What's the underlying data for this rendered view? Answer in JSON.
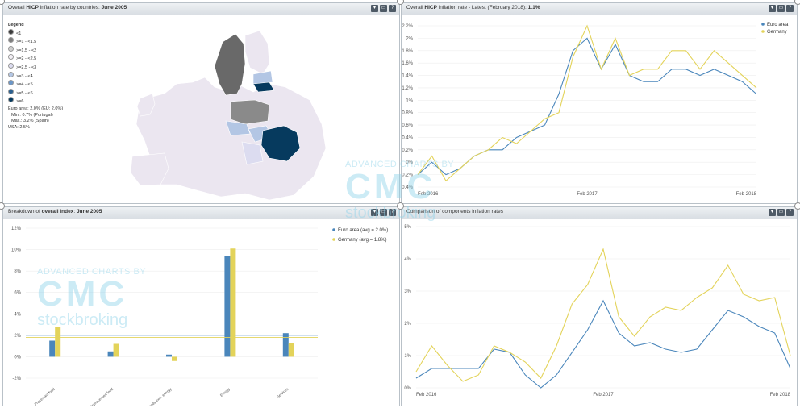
{
  "colors": {
    "euro": "#4a86bb",
    "germany": "#e3d35a",
    "map_bg": "#ebe6f0",
    "grid": "#eeeeee",
    "axis_text": "#555555"
  },
  "watermark": {
    "line1": "ADVANCED CHARTS BY",
    "logo": "CMC",
    "line2": "stockbroking"
  },
  "panels": {
    "map": {
      "title_prefix": "Overall ",
      "title_bold1": "HICP",
      "title_mid": " inflation rate by countries: ",
      "title_bold2": "June 2005"
    },
    "line_top": {
      "title_prefix": "Overall ",
      "title_bold1": "HICP",
      "title_mid": " inflation rate - Latest (February 2018): ",
      "title_bold2": "1.1%"
    },
    "bars": {
      "title_prefix": "Breakdown of ",
      "title_bold1": "overall index",
      "title_mid": ": ",
      "title_bold2": "June 2005"
    },
    "line_bottom": {
      "title_prefix": "Comparison of components inflation rates",
      "title_bold1": "",
      "title_mid": "",
      "title_bold2": ""
    }
  },
  "controls": [
    "▾",
    "▭",
    "?"
  ],
  "map_legend": {
    "title": "Legend",
    "items": [
      {
        "label": "<1",
        "color": "#3a3a3a"
      },
      {
        "label": ">=1 - <1.5",
        "color": "#7d7d7d"
      },
      {
        "label": ">=1.5 - <2",
        "color": "#cfcfcf"
      },
      {
        "label": ">=2 - <2.5",
        "color": "#f2eff5"
      },
      {
        "label": ">=2.5 - <3",
        "color": "#dcdcf0"
      },
      {
        "label": ">=3 - <4",
        "color": "#b3c6e4"
      },
      {
        "label": ">=4 - <5",
        "color": "#6b97c9"
      },
      {
        "label": ">=5 - <6",
        "color": "#2a5f8f"
      },
      {
        "label": ">=6",
        "color": "#063a5e"
      }
    ],
    "stats": [
      "Euro area: 2.0% (EU: 2.0%)",
      "Min.: 0.7% (Portugal)",
      "Max.: 3.2% (Spain)",
      "USA: 2.5%"
    ]
  },
  "chart_data": [
    {
      "type": "line",
      "title": "Overall HICP inflation rate - Latest (February 2018): 1.1%",
      "x_tick_labels": [
        "Feb 2016",
        "Feb 2017",
        "Feb 2018"
      ],
      "ylim": [
        -0.4,
        2.2
      ],
      "y_ticks": [
        "-0.4%",
        "-0.2%",
        "0%",
        "0.2%",
        "0.4%",
        "0.6%",
        "0.8%",
        "1%",
        "1.2%",
        "1.4%",
        "1.6%",
        "1.8%",
        "2%",
        "2.2%"
      ],
      "y_tick_values": [
        -0.4,
        -0.2,
        0,
        0.2,
        0.4,
        0.6,
        0.8,
        1,
        1.2,
        1.4,
        1.6,
        1.8,
        2,
        2.2
      ],
      "legend": "top-right",
      "grid": true,
      "series": [
        {
          "name": "Euro area",
          "values": [
            -0.2,
            0.0,
            -0.2,
            -0.1,
            0.1,
            0.2,
            0.2,
            0.4,
            0.5,
            0.6,
            1.1,
            1.8,
            2.0,
            1.5,
            1.9,
            1.4,
            1.3,
            1.3,
            1.5,
            1.5,
            1.4,
            1.5,
            1.4,
            1.3,
            1.1
          ]
        },
        {
          "name": "Germany",
          "values": [
            -0.2,
            0.1,
            -0.3,
            -0.1,
            0.1,
            0.2,
            0.4,
            0.3,
            0.5,
            0.7,
            0.8,
            1.7,
            2.2,
            1.5,
            2.0,
            1.4,
            1.5,
            1.5,
            1.8,
            1.8,
            1.5,
            1.8,
            1.6,
            1.4,
            1.2
          ]
        }
      ]
    },
    {
      "type": "bar",
      "title": "Breakdown of overall index: June 2005",
      "categories": [
        "Processed food",
        "Unprocessed food",
        "Ind. goods excl. energy",
        "Energy",
        "Services"
      ],
      "ylim": [
        -2,
        12
      ],
      "y_ticks": [
        "-2%",
        "0%",
        "2%",
        "4%",
        "6%",
        "8%",
        "10%",
        "12%"
      ],
      "y_tick_values": [
        -2,
        0,
        2,
        4,
        6,
        8,
        10,
        12
      ],
      "legend": "top-right",
      "grid": true,
      "series": [
        {
          "name": "Euro area (avg.= 2.0%)",
          "values": [
            1.5,
            0.5,
            0.2,
            9.4,
            2.2
          ],
          "avg": 2.0
        },
        {
          "name": "Germany (avg.= 1.8%)",
          "values": [
            2.8,
            1.2,
            -0.4,
            10.1,
            1.3
          ],
          "avg": 1.8
        }
      ]
    },
    {
      "type": "line",
      "title": "Comparison of components inflation rates",
      "x_tick_labels": [
        "Feb 2016",
        "Feb 2017",
        "Feb 2018"
      ],
      "ylim": [
        0,
        5
      ],
      "y_ticks": [
        "0%",
        "1%",
        "2%",
        "3%",
        "4%",
        "5%"
      ],
      "y_tick_values": [
        0,
        1,
        2,
        3,
        4,
        5
      ],
      "grid": true,
      "series": [
        {
          "values": [
            0.3,
            0.6,
            0.6,
            0.6,
            0.6,
            1.2,
            1.1,
            0.4,
            0.0,
            0.4,
            1.1,
            1.8,
            2.7,
            1.7,
            1.3,
            1.4,
            1.2,
            1.1,
            1.2,
            1.8,
            2.4,
            2.2,
            1.9,
            1.7,
            0.6
          ]
        },
        {
          "values": [
            0.5,
            1.3,
            0.7,
            0.2,
            0.4,
            1.3,
            1.1,
            0.8,
            0.3,
            1.3,
            2.6,
            3.2,
            4.3,
            2.2,
            1.6,
            2.2,
            2.5,
            2.4,
            2.8,
            3.1,
            3.8,
            2.9,
            2.7,
            2.8,
            1.0
          ]
        }
      ]
    }
  ]
}
